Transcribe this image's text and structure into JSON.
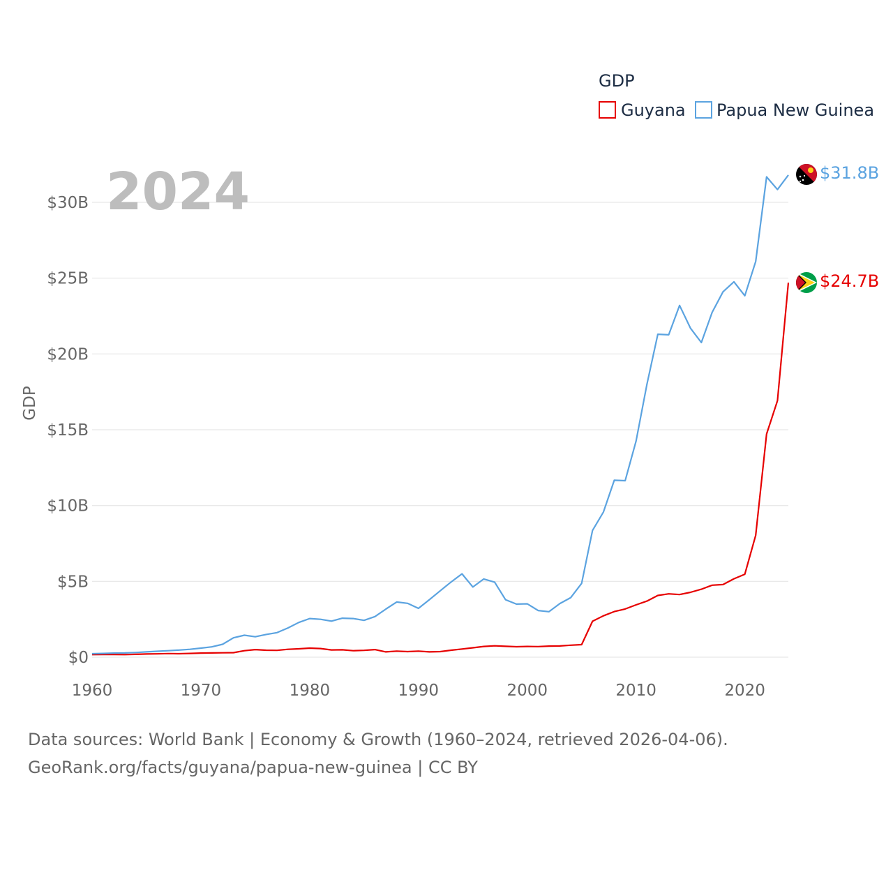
{
  "chart_data": {
    "type": "line",
    "title": "GDP",
    "year_label": "2024",
    "ylabel": "GDP",
    "xlabel": "",
    "xlim": [
      1960,
      2024
    ],
    "ylim": [
      0,
      32.5
    ],
    "x_ticks": [
      1960,
      1970,
      1980,
      1990,
      2000,
      2010,
      2020
    ],
    "x_tick_labels": [
      "1960",
      "1970",
      "1980",
      "1990",
      "2000",
      "2010",
      "2020"
    ],
    "y_ticks": [
      0,
      5,
      10,
      15,
      20,
      25,
      30
    ],
    "y_tick_labels": [
      "$0",
      "$5B",
      "$10B",
      "$15B",
      "$20B",
      "$25B",
      "$30B"
    ],
    "legend": "top-right",
    "x": [
      1960,
      1961,
      1962,
      1963,
      1964,
      1965,
      1966,
      1967,
      1968,
      1969,
      1970,
      1971,
      1972,
      1973,
      1974,
      1975,
      1976,
      1977,
      1978,
      1979,
      1980,
      1981,
      1982,
      1983,
      1984,
      1985,
      1986,
      1987,
      1988,
      1989,
      1990,
      1991,
      1992,
      1993,
      1994,
      1995,
      1996,
      1997,
      1998,
      1999,
      2000,
      2001,
      2002,
      2003,
      2004,
      2005,
      2006,
      2007,
      2008,
      2009,
      2010,
      2011,
      2012,
      2013,
      2014,
      2015,
      2016,
      2017,
      2018,
      2019,
      2020,
      2021,
      2022,
      2023,
      2024
    ],
    "series": [
      {
        "name": "Guyana",
        "color": "#e60000",
        "end_label": "$24.7B",
        "flag": "guyana-flag-icon",
        "values": [
          0.17,
          0.18,
          0.18,
          0.17,
          0.19,
          0.21,
          0.22,
          0.24,
          0.23,
          0.25,
          0.27,
          0.28,
          0.29,
          0.3,
          0.43,
          0.5,
          0.46,
          0.45,
          0.52,
          0.55,
          0.6,
          0.57,
          0.48,
          0.49,
          0.43,
          0.45,
          0.5,
          0.35,
          0.4,
          0.37,
          0.4,
          0.35,
          0.37,
          0.46,
          0.54,
          0.62,
          0.71,
          0.75,
          0.72,
          0.69,
          0.71,
          0.7,
          0.73,
          0.74,
          0.79,
          0.83,
          2.37,
          2.73,
          3.01,
          3.18,
          3.45,
          3.7,
          4.07,
          4.18,
          4.13,
          4.28,
          4.48,
          4.75,
          4.79,
          5.17,
          5.47,
          8.04,
          14.72,
          16.92,
          24.7
        ]
      },
      {
        "name": "Papua New Guinea",
        "color": "#5ba3e0",
        "end_label": "$31.8B",
        "flag": "papua-new-guinea-flag-icon",
        "values": [
          0.23,
          0.25,
          0.27,
          0.28,
          0.31,
          0.35,
          0.39,
          0.43,
          0.47,
          0.52,
          0.6,
          0.68,
          0.85,
          1.28,
          1.45,
          1.35,
          1.5,
          1.62,
          1.93,
          2.29,
          2.55,
          2.5,
          2.38,
          2.57,
          2.55,
          2.43,
          2.68,
          3.17,
          3.64,
          3.55,
          3.22,
          3.79,
          4.38,
          4.96,
          5.5,
          4.63,
          5.16,
          4.95,
          3.79,
          3.5,
          3.52,
          3.08,
          3.0,
          3.54,
          3.93,
          4.87,
          8.36,
          9.57,
          11.67,
          11.64,
          14.25,
          18.0,
          21.3,
          21.26,
          23.2,
          21.7,
          20.75,
          22.75,
          24.1,
          24.76,
          23.84,
          26.1,
          31.68,
          30.84,
          31.8
        ]
      }
    ]
  },
  "footer": {
    "source_line_1": "Data sources: World Bank | Economy & Growth (1960–2024, retrieved 2026-04-06).",
    "source_line_2": "GeoRank.org/facts/guyana/papua-new-guinea | CC BY"
  }
}
